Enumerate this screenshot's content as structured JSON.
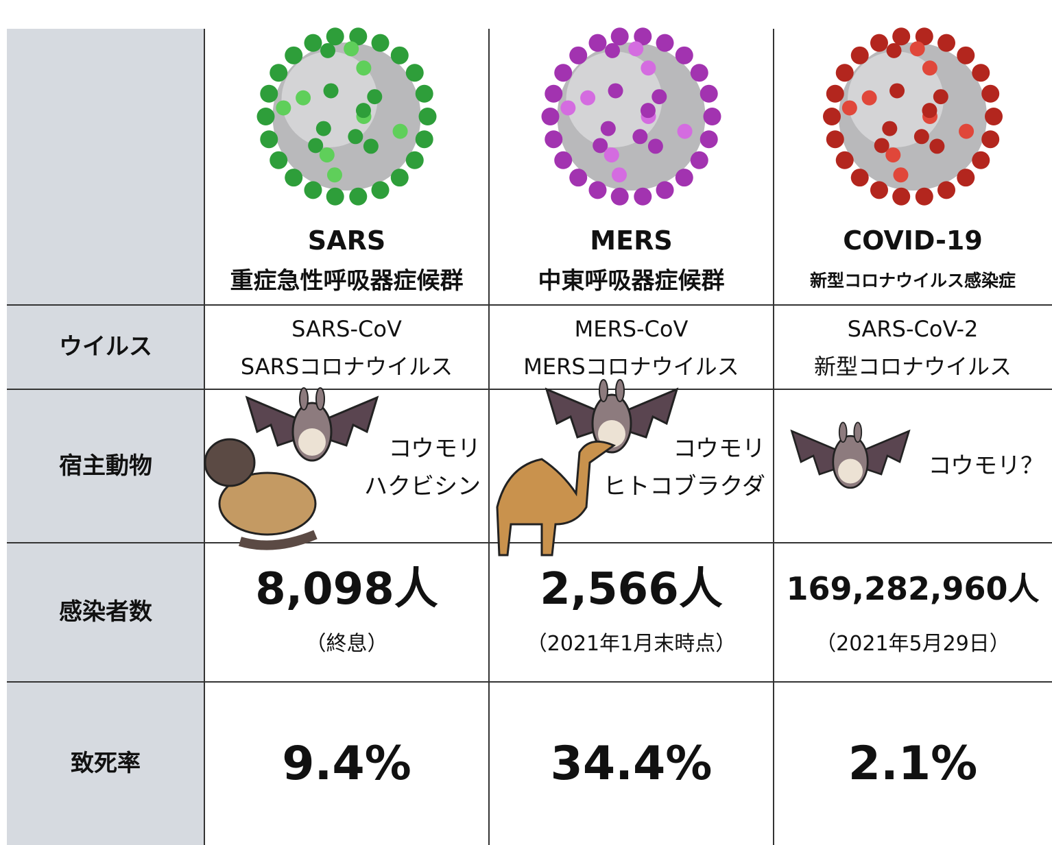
{
  "table": {
    "header_row": [
      {
        "name": "SARS",
        "subtitle": "重症急性呼吸器症候群"
      },
      {
        "name": "MERS",
        "subtitle": "中東呼吸器症候群"
      },
      {
        "name": "COVID-19",
        "subtitle": "新型コロナウイルス感染症"
      }
    ],
    "rows": [
      {
        "label": "ウイルス",
        "cells": [
          {
            "lines": [
              "SARS-CoV",
              "SARSコロナウイルス"
            ]
          },
          {
            "lines": [
              "MERS-CoV",
              "MERSコロナウイルス"
            ]
          },
          {
            "lines": [
              "SARS-CoV-2",
              "新型コロナウイルス"
            ]
          }
        ]
      },
      {
        "label": "宿主動物",
        "cells": [
          {
            "lines": [
              "コウモリ",
              "ハクビシン"
            ]
          },
          {
            "lines": [
              "コウモリ",
              "ヒトコブラクダ"
            ]
          },
          {
            "lines": [
              "コウモリ？"
            ]
          }
        ]
      },
      {
        "label": "感染者数",
        "cells": [
          {
            "value": "8,098人",
            "note": "（終息）"
          },
          {
            "value": "2,566人",
            "note": "（2021年1月末時点）"
          },
          {
            "value": "169,282,960人",
            "note": "（2021年5月29日）"
          }
        ]
      },
      {
        "label": "致死率",
        "cells": [
          {
            "value": "9.4%"
          },
          {
            "value": "34.4%"
          },
          {
            "value": "2.1%"
          }
        ]
      }
    ]
  }
}
